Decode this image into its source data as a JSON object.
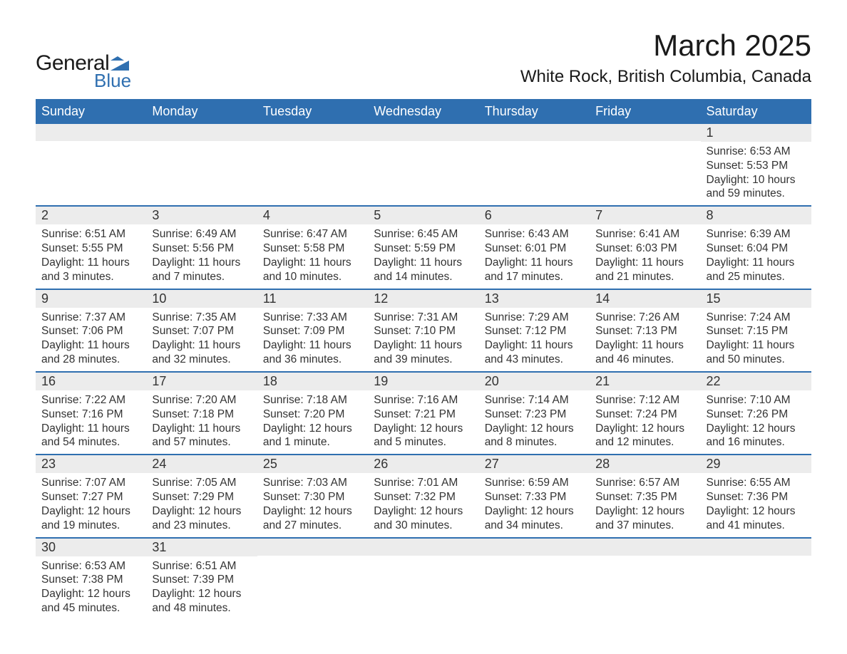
{
  "brand": {
    "text_general": "General",
    "text_blue": "Blue",
    "mark_color": "#2f6fb0"
  },
  "title": "March 2025",
  "location": "White Rock, British Columbia, Canada",
  "colors": {
    "header_bg": "#2f6fb0",
    "header_text": "#ffffff",
    "daynum_bg": "#ececec",
    "row_border": "#2f6fb0",
    "body_text": "#333333",
    "page_bg": "#ffffff"
  },
  "dow": [
    "Sunday",
    "Monday",
    "Tuesday",
    "Wednesday",
    "Thursday",
    "Friday",
    "Saturday"
  ],
  "weeks": [
    [
      {
        "day": null
      },
      {
        "day": null
      },
      {
        "day": null
      },
      {
        "day": null
      },
      {
        "day": null
      },
      {
        "day": null
      },
      {
        "day": "1",
        "sunrise": "Sunrise: 6:53 AM",
        "sunset": "Sunset: 5:53 PM",
        "daylight": "Daylight: 10 hours and 59 minutes."
      }
    ],
    [
      {
        "day": "2",
        "sunrise": "Sunrise: 6:51 AM",
        "sunset": "Sunset: 5:55 PM",
        "daylight": "Daylight: 11 hours and 3 minutes."
      },
      {
        "day": "3",
        "sunrise": "Sunrise: 6:49 AM",
        "sunset": "Sunset: 5:56 PM",
        "daylight": "Daylight: 11 hours and 7 minutes."
      },
      {
        "day": "4",
        "sunrise": "Sunrise: 6:47 AM",
        "sunset": "Sunset: 5:58 PM",
        "daylight": "Daylight: 11 hours and 10 minutes."
      },
      {
        "day": "5",
        "sunrise": "Sunrise: 6:45 AM",
        "sunset": "Sunset: 5:59 PM",
        "daylight": "Daylight: 11 hours and 14 minutes."
      },
      {
        "day": "6",
        "sunrise": "Sunrise: 6:43 AM",
        "sunset": "Sunset: 6:01 PM",
        "daylight": "Daylight: 11 hours and 17 minutes."
      },
      {
        "day": "7",
        "sunrise": "Sunrise: 6:41 AM",
        "sunset": "Sunset: 6:03 PM",
        "daylight": "Daylight: 11 hours and 21 minutes."
      },
      {
        "day": "8",
        "sunrise": "Sunrise: 6:39 AM",
        "sunset": "Sunset: 6:04 PM",
        "daylight": "Daylight: 11 hours and 25 minutes."
      }
    ],
    [
      {
        "day": "9",
        "sunrise": "Sunrise: 7:37 AM",
        "sunset": "Sunset: 7:06 PM",
        "daylight": "Daylight: 11 hours and 28 minutes."
      },
      {
        "day": "10",
        "sunrise": "Sunrise: 7:35 AM",
        "sunset": "Sunset: 7:07 PM",
        "daylight": "Daylight: 11 hours and 32 minutes."
      },
      {
        "day": "11",
        "sunrise": "Sunrise: 7:33 AM",
        "sunset": "Sunset: 7:09 PM",
        "daylight": "Daylight: 11 hours and 36 minutes."
      },
      {
        "day": "12",
        "sunrise": "Sunrise: 7:31 AM",
        "sunset": "Sunset: 7:10 PM",
        "daylight": "Daylight: 11 hours and 39 minutes."
      },
      {
        "day": "13",
        "sunrise": "Sunrise: 7:29 AM",
        "sunset": "Sunset: 7:12 PM",
        "daylight": "Daylight: 11 hours and 43 minutes."
      },
      {
        "day": "14",
        "sunrise": "Sunrise: 7:26 AM",
        "sunset": "Sunset: 7:13 PM",
        "daylight": "Daylight: 11 hours and 46 minutes."
      },
      {
        "day": "15",
        "sunrise": "Sunrise: 7:24 AM",
        "sunset": "Sunset: 7:15 PM",
        "daylight": "Daylight: 11 hours and 50 minutes."
      }
    ],
    [
      {
        "day": "16",
        "sunrise": "Sunrise: 7:22 AM",
        "sunset": "Sunset: 7:16 PM",
        "daylight": "Daylight: 11 hours and 54 minutes."
      },
      {
        "day": "17",
        "sunrise": "Sunrise: 7:20 AM",
        "sunset": "Sunset: 7:18 PM",
        "daylight": "Daylight: 11 hours and 57 minutes."
      },
      {
        "day": "18",
        "sunrise": "Sunrise: 7:18 AM",
        "sunset": "Sunset: 7:20 PM",
        "daylight": "Daylight: 12 hours and 1 minute."
      },
      {
        "day": "19",
        "sunrise": "Sunrise: 7:16 AM",
        "sunset": "Sunset: 7:21 PM",
        "daylight": "Daylight: 12 hours and 5 minutes."
      },
      {
        "day": "20",
        "sunrise": "Sunrise: 7:14 AM",
        "sunset": "Sunset: 7:23 PM",
        "daylight": "Daylight: 12 hours and 8 minutes."
      },
      {
        "day": "21",
        "sunrise": "Sunrise: 7:12 AM",
        "sunset": "Sunset: 7:24 PM",
        "daylight": "Daylight: 12 hours and 12 minutes."
      },
      {
        "day": "22",
        "sunrise": "Sunrise: 7:10 AM",
        "sunset": "Sunset: 7:26 PM",
        "daylight": "Daylight: 12 hours and 16 minutes."
      }
    ],
    [
      {
        "day": "23",
        "sunrise": "Sunrise: 7:07 AM",
        "sunset": "Sunset: 7:27 PM",
        "daylight": "Daylight: 12 hours and 19 minutes."
      },
      {
        "day": "24",
        "sunrise": "Sunrise: 7:05 AM",
        "sunset": "Sunset: 7:29 PM",
        "daylight": "Daylight: 12 hours and 23 minutes."
      },
      {
        "day": "25",
        "sunrise": "Sunrise: 7:03 AM",
        "sunset": "Sunset: 7:30 PM",
        "daylight": "Daylight: 12 hours and 27 minutes."
      },
      {
        "day": "26",
        "sunrise": "Sunrise: 7:01 AM",
        "sunset": "Sunset: 7:32 PM",
        "daylight": "Daylight: 12 hours and 30 minutes."
      },
      {
        "day": "27",
        "sunrise": "Sunrise: 6:59 AM",
        "sunset": "Sunset: 7:33 PM",
        "daylight": "Daylight: 12 hours and 34 minutes."
      },
      {
        "day": "28",
        "sunrise": "Sunrise: 6:57 AM",
        "sunset": "Sunset: 7:35 PM",
        "daylight": "Daylight: 12 hours and 37 minutes."
      },
      {
        "day": "29",
        "sunrise": "Sunrise: 6:55 AM",
        "sunset": "Sunset: 7:36 PM",
        "daylight": "Daylight: 12 hours and 41 minutes."
      }
    ],
    [
      {
        "day": "30",
        "sunrise": "Sunrise: 6:53 AM",
        "sunset": "Sunset: 7:38 PM",
        "daylight": "Daylight: 12 hours and 45 minutes."
      },
      {
        "day": "31",
        "sunrise": "Sunrise: 6:51 AM",
        "sunset": "Sunset: 7:39 PM",
        "daylight": "Daylight: 12 hours and 48 minutes."
      },
      {
        "day": null
      },
      {
        "day": null
      },
      {
        "day": null
      },
      {
        "day": null
      },
      {
        "day": null
      }
    ]
  ]
}
